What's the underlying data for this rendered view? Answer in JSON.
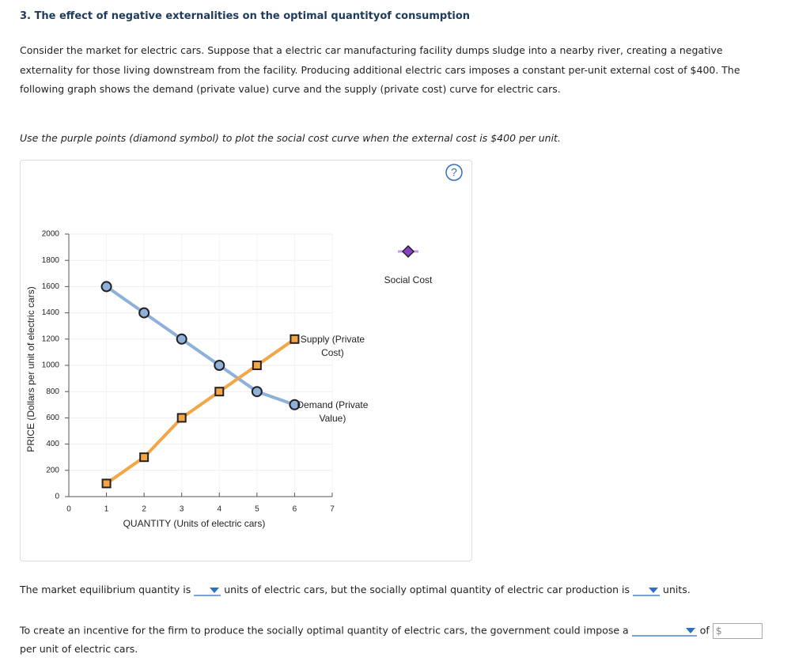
{
  "header": {
    "title": "3. The effect of negative externalities on the optimal quantityof consumption"
  },
  "intro": [
    "Consider the market for electric cars. Suppose that a electric car manufacturing facility dumps sludge into a nearby river, creating a negative",
    "externality for those living downstream from the facility. Producing additional electric cars imposes a constant per-unit external cost of $400. The",
    "following graph shows the demand (private value) curve and the supply (private cost) curve for electric cars."
  ],
  "instruction": "Use the purple points (diamond symbol) to plot the social cost curve when the external cost is $400 per unit.",
  "help_icon": "?",
  "chart_data": {
    "type": "line",
    "xlabel": "QUANTITY (Units of electric cars)",
    "ylabel": "PRICE (Dollars per unit of electric cars)",
    "xlim": [
      0,
      7
    ],
    "xticks": [
      0,
      1,
      2,
      3,
      4,
      5,
      6,
      7
    ],
    "ylim": [
      0,
      2000
    ],
    "yticks": [
      0,
      200,
      400,
      600,
      800,
      1000,
      1200,
      1400,
      1600,
      1800,
      2000
    ],
    "grid": true,
    "x": [
      1,
      2,
      3,
      4,
      5,
      6
    ],
    "series": [
      {
        "name": "Demand (Private Value)",
        "color": "#8fb1d9",
        "marker": "circle",
        "values": [
          1600,
          1400,
          1200,
          1000,
          800,
          700
        ]
      },
      {
        "name": "Supply (Private Cost)",
        "color": "#f4a547",
        "marker": "square",
        "values": [
          100,
          300,
          600,
          800,
          1000,
          1200
        ]
      }
    ],
    "tool": {
      "name": "Social Cost",
      "color": "#8b3fc6"
    }
  },
  "question1": {
    "before": "The market equilibrium quantity is",
    "middle": "units of electric cars, but the socially optimal quantity of electric car production is",
    "after": "units."
  },
  "question2": {
    "before": "To create an incentive for the firm to produce the socially optimal quantity of electric cars, the government could impose a",
    "middle": "of",
    "currency": "$",
    "after": "per unit of electric cars."
  }
}
